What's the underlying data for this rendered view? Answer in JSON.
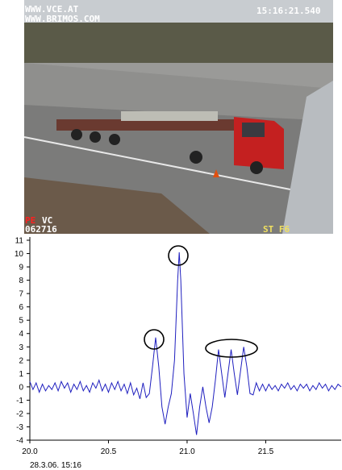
{
  "camera": {
    "site": "WWW.VCE.AT",
    "site2": "WWW.BRIMOS.COM",
    "time": "15:16:21.540",
    "mark": "PE",
    "code": "VC",
    "id": "062716",
    "station": "ST F6"
  },
  "chart_data": {
    "type": "line",
    "date": "28.3.06. 15:16",
    "x": [
      20.0,
      20.02,
      20.04,
      20.06,
      20.08,
      20.1,
      20.12,
      20.14,
      20.16,
      20.18,
      20.2,
      20.22,
      20.24,
      20.26,
      20.28,
      20.3,
      20.32,
      20.34,
      20.36,
      20.38,
      20.4,
      20.42,
      20.44,
      20.46,
      20.48,
      20.5,
      20.52,
      20.54,
      20.56,
      20.58,
      20.6,
      20.62,
      20.64,
      20.66,
      20.68,
      20.7,
      20.72,
      20.74,
      20.76,
      20.78,
      20.8,
      20.82,
      20.84,
      20.86,
      20.88,
      20.9,
      20.92,
      20.94,
      20.95,
      20.96,
      20.98,
      21.0,
      21.02,
      21.04,
      21.06,
      21.08,
      21.1,
      21.12,
      21.14,
      21.16,
      21.18,
      21.2,
      21.22,
      21.24,
      21.26,
      21.28,
      21.3,
      21.32,
      21.34,
      21.36,
      21.38,
      21.4,
      21.42,
      21.44,
      21.46,
      21.48,
      21.5,
      21.52,
      21.54,
      21.56,
      21.58,
      21.6,
      21.62,
      21.64,
      21.66,
      21.68,
      21.7,
      21.72,
      21.74,
      21.76,
      21.78,
      21.8,
      21.82,
      21.84,
      21.86,
      21.88,
      21.9,
      21.92,
      21.94,
      21.96,
      21.98
    ],
    "series": [
      {
        "color": "#1f1fbf",
        "values": [
          0.4,
          -0.2,
          0.3,
          -0.4,
          0.2,
          -0.3,
          0.1,
          -0.2,
          0.3,
          -0.3,
          0.4,
          -0.1,
          0.3,
          -0.4,
          0.2,
          -0.2,
          0.4,
          -0.3,
          0.1,
          -0.4,
          0.3,
          -0.1,
          0.5,
          -0.3,
          0.2,
          -0.4,
          0.3,
          -0.2,
          0.4,
          -0.3,
          0.2,
          -0.5,
          0.3,
          -0.6,
          -0.1,
          -0.9,
          0.3,
          -0.8,
          -0.5,
          1.5,
          3.7,
          1.5,
          -1.5,
          -2.8,
          -1.5,
          -0.5,
          2.0,
          8.0,
          10.1,
          8.0,
          1.0,
          -2.3,
          -0.5,
          -2.0,
          -3.6,
          -1.5,
          0.0,
          -1.5,
          -2.7,
          -1.5,
          0.5,
          2.8,
          1.0,
          -0.8,
          1.0,
          2.8,
          1.0,
          -0.6,
          1.2,
          3.0,
          1.5,
          -0.5,
          -0.6,
          0.3,
          -0.3,
          0.2,
          -0.3,
          0.2,
          -0.2,
          0.1,
          -0.3,
          0.2,
          -0.1,
          0.3,
          -0.2,
          0.1,
          -0.3,
          0.2,
          -0.1,
          0.2,
          -0.3,
          0.1,
          -0.2,
          0.3,
          -0.1,
          0.2,
          -0.3,
          0.1,
          -0.2,
          0.2,
          0.0
        ]
      }
    ],
    "xlim": [
      20.0,
      21.98
    ],
    "ylim": [
      -4,
      11
    ],
    "xticks": [
      {
        "value": 20.0,
        "label": "20.0"
      },
      20.5,
      {
        "value": 21.0,
        "label": "21.0"
      },
      21.5
    ],
    "yticks": [
      -4,
      -3,
      -2,
      -1,
      0,
      1,
      2,
      3,
      4,
      5,
      6,
      7,
      8,
      9,
      10,
      11
    ]
  }
}
